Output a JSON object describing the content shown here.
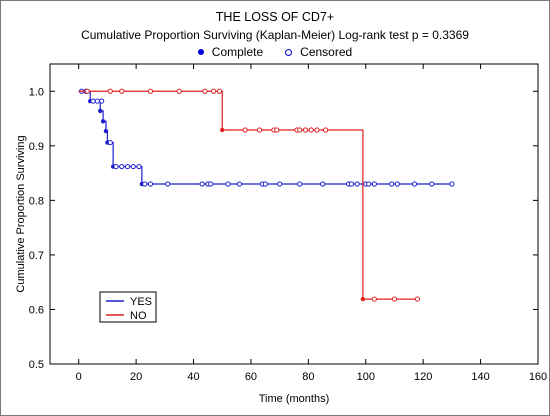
{
  "chart_data": {
    "type": "line",
    "title": "THE LOSS OF CD7+",
    "subtitle": "Cumulative Proportion Surviving (Kaplan-Meier)  Log-rank test  p = 0.3369",
    "xlabel": "Time (months)",
    "ylabel": "Cumulative Proportion Surviving",
    "xlim": [
      -10,
      160
    ],
    "ylim": [
      0.5,
      1.05
    ],
    "xticks": [
      0,
      20,
      40,
      60,
      80,
      100,
      120,
      140,
      160
    ],
    "yticks": [
      0.5,
      0.6,
      0.7,
      0.8,
      0.9,
      1.0
    ],
    "xtick_labels": [
      "0",
      "20",
      "40",
      "60",
      "80",
      "100",
      "120",
      "140",
      "160"
    ],
    "ytick_labels": [
      "0.5",
      "0.6",
      "0.7",
      "0.8",
      "0.9",
      "1.0"
    ],
    "marker_legend": [
      {
        "label": "Complete",
        "marker": "filled"
      },
      {
        "label": "Censored",
        "marker": "open"
      }
    ],
    "legend_position": "bottom-left",
    "series": [
      {
        "name": "YES",
        "color": "#1f1fd0",
        "steps": [
          {
            "t": 0,
            "s": 1.0
          },
          {
            "t": 4,
            "s": 0.982
          },
          {
            "t": 7.5,
            "s": 0.964
          },
          {
            "t": 8.5,
            "s": 0.945
          },
          {
            "t": 9.5,
            "s": 0.927
          },
          {
            "t": 10,
            "s": 0.906
          },
          {
            "t": 12,
            "s": 0.862
          },
          {
            "t": 22,
            "s": 0.83
          },
          {
            "t": 130,
            "s": 0.83
          }
        ],
        "events": [
          4,
          7.5,
          8.5,
          9.5,
          10,
          12,
          22
        ],
        "censored": [
          {
            "t": 1,
            "s": 1.0
          },
          {
            "t": 2.5,
            "s": 1.0
          },
          {
            "t": 5,
            "s": 0.982
          },
          {
            "t": 6.5,
            "s": 0.982
          },
          {
            "t": 8,
            "s": 0.982
          },
          {
            "t": 11,
            "s": 0.906
          },
          {
            "t": 13,
            "s": 0.862
          },
          {
            "t": 15,
            "s": 0.862
          },
          {
            "t": 17,
            "s": 0.862
          },
          {
            "t": 19,
            "s": 0.862
          },
          {
            "t": 21,
            "s": 0.862
          },
          {
            "t": 23,
            "s": 0.83
          },
          {
            "t": 25,
            "s": 0.83
          },
          {
            "t": 31,
            "s": 0.83
          },
          {
            "t": 43,
            "s": 0.83
          },
          {
            "t": 45,
            "s": 0.83
          },
          {
            "t": 46,
            "s": 0.83
          },
          {
            "t": 52,
            "s": 0.83
          },
          {
            "t": 56,
            "s": 0.83
          },
          {
            "t": 64,
            "s": 0.83
          },
          {
            "t": 65,
            "s": 0.83
          },
          {
            "t": 70,
            "s": 0.83
          },
          {
            "t": 77,
            "s": 0.83
          },
          {
            "t": 85,
            "s": 0.83
          },
          {
            "t": 94,
            "s": 0.83
          },
          {
            "t": 95,
            "s": 0.83
          },
          {
            "t": 97,
            "s": 0.83
          },
          {
            "t": 100,
            "s": 0.83
          },
          {
            "t": 101,
            "s": 0.83
          },
          {
            "t": 103,
            "s": 0.83
          },
          {
            "t": 109,
            "s": 0.83
          },
          {
            "t": 111,
            "s": 0.83
          },
          {
            "t": 117,
            "s": 0.83
          },
          {
            "t": 123,
            "s": 0.83
          },
          {
            "t": 130,
            "s": 0.83
          }
        ]
      },
      {
        "name": "NO",
        "color": "#e02020",
        "steps": [
          {
            "t": 0,
            "s": 1.0
          },
          {
            "t": 50,
            "s": 0.929
          },
          {
            "t": 99,
            "s": 0.619
          },
          {
            "t": 118,
            "s": 0.619
          }
        ],
        "events": [
          50,
          99
        ],
        "censored": [
          {
            "t": 3,
            "s": 1.0
          },
          {
            "t": 11,
            "s": 1.0
          },
          {
            "t": 15,
            "s": 1.0
          },
          {
            "t": 25,
            "s": 1.0
          },
          {
            "t": 35,
            "s": 1.0
          },
          {
            "t": 44,
            "s": 1.0
          },
          {
            "t": 47,
            "s": 1.0
          },
          {
            "t": 49,
            "s": 1.0
          },
          {
            "t": 58,
            "s": 0.929
          },
          {
            "t": 63,
            "s": 0.929
          },
          {
            "t": 68,
            "s": 0.929
          },
          {
            "t": 69,
            "s": 0.929
          },
          {
            "t": 76,
            "s": 0.929
          },
          {
            "t": 77,
            "s": 0.929
          },
          {
            "t": 79,
            "s": 0.929
          },
          {
            "t": 81,
            "s": 0.929
          },
          {
            "t": 83,
            "s": 0.929
          },
          {
            "t": 86,
            "s": 0.929
          },
          {
            "t": 103,
            "s": 0.619
          },
          {
            "t": 110,
            "s": 0.619
          },
          {
            "t": 118,
            "s": 0.619
          }
        ]
      }
    ]
  }
}
